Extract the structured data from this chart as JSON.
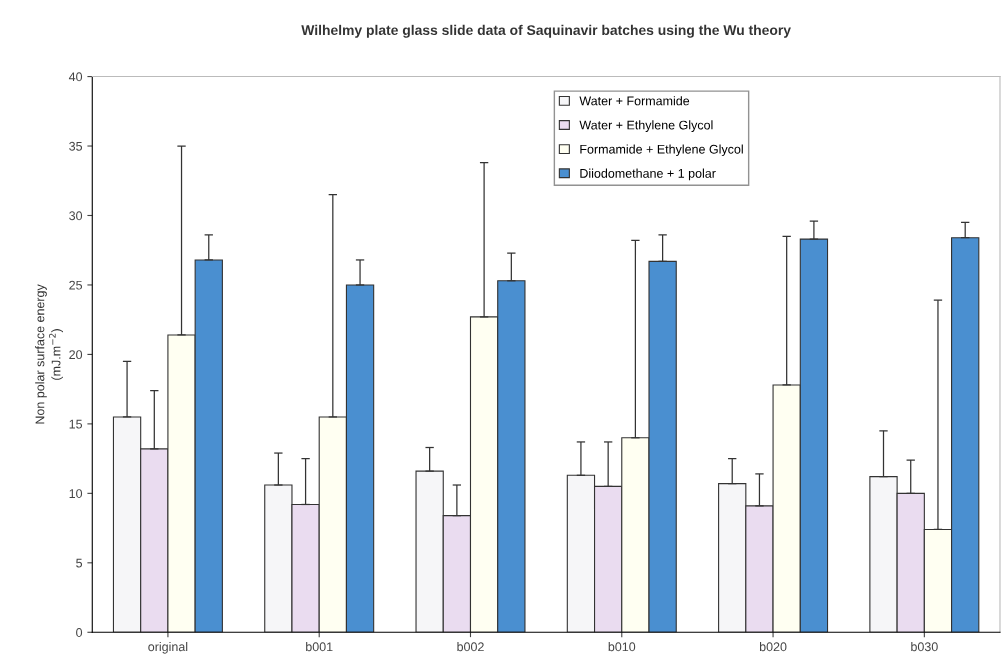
{
  "chart_data": {
    "type": "bar",
    "title": "Wilhelmy plate glass slide data of Saquinavir batches using the Wu theory",
    "ylabel": "Non polar surface energy\n(mJ.m$^{−2}$)",
    "categories": [
      "original",
      "b001",
      "b002",
      "b010",
      "b020",
      "b030"
    ],
    "series": [
      {
        "name": "Water + Formamide",
        "color": "#f6f6f8",
        "values": [
          15.5,
          10.6,
          11.6,
          11.3,
          10.7,
          11.2
        ],
        "errors": [
          [
            15.5,
            19.5
          ],
          [
            10.6,
            12.9
          ],
          [
            11.6,
            13.3
          ],
          [
            11.3,
            13.7
          ],
          [
            10.7,
            12.5
          ],
          [
            11.2,
            14.5
          ]
        ]
      },
      {
        "name": "Water + Ethylene Glycol",
        "color": "#eadcf0",
        "values": [
          13.2,
          9.2,
          8.4,
          10.5,
          9.1,
          10.0
        ],
        "errors": [
          [
            13.2,
            17.4
          ],
          [
            9.2,
            12.5
          ],
          [
            8.4,
            10.6
          ],
          [
            10.5,
            13.7
          ],
          [
            9.1,
            11.4
          ],
          [
            10.0,
            12.4
          ]
        ]
      },
      {
        "name": "Formamide + Ethylene Glycol",
        "color": "#fffff2",
        "values": [
          21.4,
          15.5,
          22.7,
          14.0,
          17.8,
          7.4
        ],
        "errors": [
          [
            21.4,
            35.0
          ],
          [
            15.5,
            31.5
          ],
          [
            22.7,
            33.8
          ],
          [
            14.0,
            28.2
          ],
          [
            17.8,
            28.5
          ],
          [
            7.4,
            23.9
          ]
        ]
      },
      {
        "name": "Diiodomethane + 1 polar",
        "color": "#4a8fd0",
        "values": [
          26.8,
          25.0,
          25.3,
          26.7,
          28.3,
          28.4
        ],
        "errors": [
          [
            26.8,
            28.6
          ],
          [
            25.0,
            26.8
          ],
          [
            25.3,
            27.3
          ],
          [
            26.7,
            28.6
          ],
          [
            28.3,
            29.6
          ],
          [
            28.4,
            29.5
          ]
        ]
      }
    ],
    "ylim": [
      0,
      40
    ],
    "yticks": [
      0,
      5,
      10,
      15,
      20,
      25,
      30,
      35,
      40
    ],
    "grid": false,
    "legend": "top right"
  }
}
